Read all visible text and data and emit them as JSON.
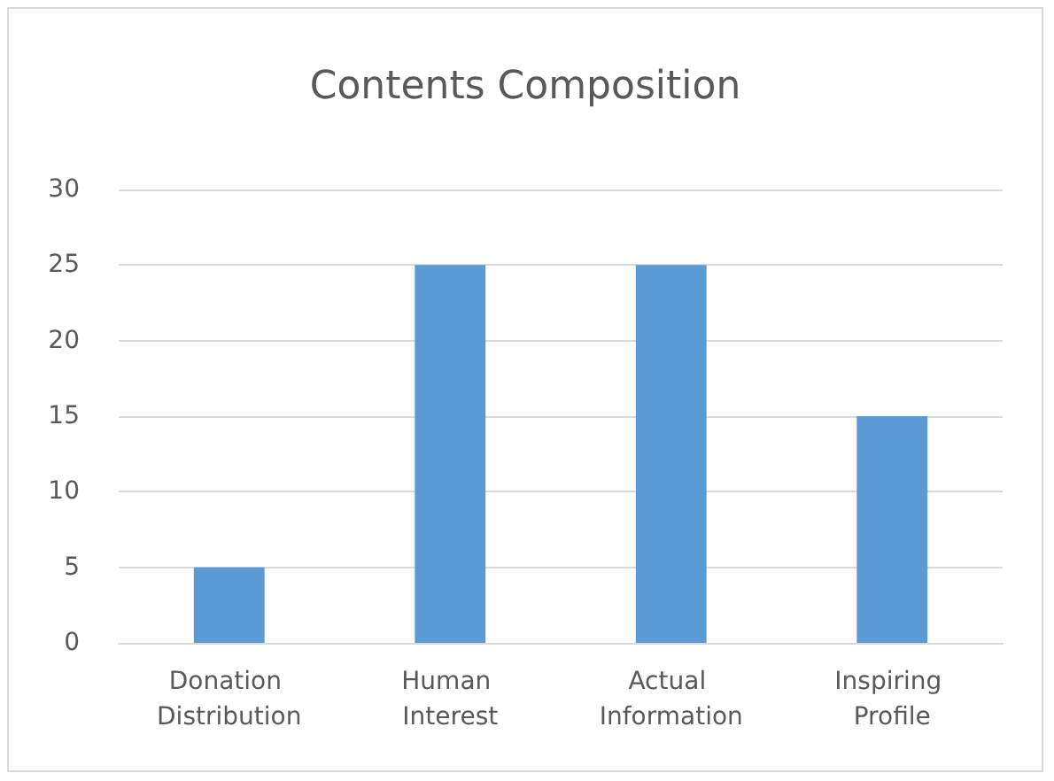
{
  "chart_data": {
    "type": "bar",
    "title": "Contents Composition",
    "categories": [
      "Donation Distribution",
      "Human Interest",
      "Actual Information",
      "Inspiring Profile"
    ],
    "values": [
      5,
      25,
      25,
      15
    ],
    "color": "#5b9bd5",
    "ylim": [
      0,
      30
    ],
    "yticks": [
      0,
      5,
      10,
      15,
      20,
      25,
      30
    ],
    "grid": "y"
  }
}
